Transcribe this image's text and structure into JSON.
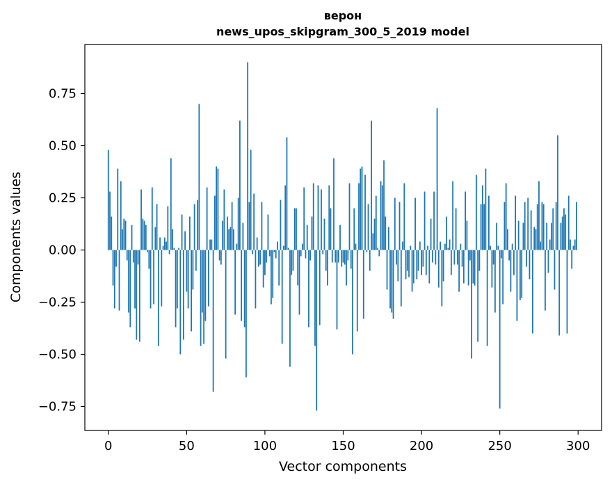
{
  "chart_data": {
    "type": "bar",
    "title_line1": "верон",
    "title_line2": "news_upos_skipgram_300_5_2019 model",
    "xlabel": "Vector components",
    "ylabel": "Components values",
    "xlim": [
      -15,
      315
    ],
    "ylim": [
      -0.865,
      0.985
    ],
    "xticks": [
      0,
      50,
      100,
      150,
      200,
      250,
      300
    ],
    "xtick_labels": [
      "0",
      "50",
      "100",
      "150",
      "200",
      "250",
      "300"
    ],
    "yticks": [
      -0.75,
      -0.5,
      -0.25,
      0.0,
      0.25,
      0.5,
      0.75
    ],
    "ytick_labels": [
      "−0.75",
      "−0.50",
      "−0.25",
      "0.00",
      "0.25",
      "0.50",
      "0.75"
    ],
    "color": "#1f77b4",
    "values": [
      0.48,
      0.28,
      0.16,
      -0.17,
      -0.28,
      -0.08,
      0.39,
      -0.29,
      0.33,
      0.1,
      0.15,
      0.14,
      -0.05,
      -0.3,
      -0.37,
      0.12,
      -0.06,
      -0.28,
      -0.43,
      -0.07,
      -0.44,
      0.29,
      0.15,
      0.14,
      0.12,
      -0.01,
      -0.09,
      -0.28,
      0.3,
      -0.26,
      0.11,
      0.22,
      -0.46,
      0.06,
      -0.27,
      0.02,
      0.06,
      0.04,
      0.21,
      -0.02,
      0.44,
      0.1,
      0.01,
      -0.37,
      -0.28,
      0.01,
      -0.5,
      0.17,
      -0.43,
      0.09,
      -0.2,
      -0.28,
      0.16,
      -0.39,
      -0.19,
      0.22,
      -0.1,
      0.24,
      0.7,
      -0.46,
      -0.3,
      -0.45,
      -0.34,
      0.3,
      -0.27,
      0.05,
      0.05,
      -0.68,
      0.26,
      0.4,
      0.39,
      -0.05,
      -0.07,
      0.14,
      0.29,
      -0.52,
      0.16,
      0.1,
      0.11,
      0.23,
      0.1,
      -0.31,
      0.03,
      0.25,
      0.62,
      -0.34,
      0.13,
      -0.37,
      -0.61,
      0.9,
      0.23,
      0.48,
      -0.02,
      0.27,
      -0.28,
      0.06,
      -0.08,
      -0.07,
      0.23,
      -0.18,
      -0.12,
      -0.06,
      0.17,
      -0.03,
      -0.26,
      -0.23,
      -0.01,
      -0.04,
      0.04,
      -0.17,
      0.24,
      -0.45,
      0.02,
      0.31,
      0.54,
      0.01,
      -0.56,
      -0.12,
      -0.1,
      0.2,
      0.2,
      -0.17,
      -0.31,
      -0.03,
      0.03,
      0.3,
      -0.04,
      0.12,
      -0.37,
      -0.05,
      0.16,
      0.32,
      -0.46,
      -0.77,
      0.31,
      -0.36,
      0.29,
      -0.02,
      0.15,
      -0.1,
      -0.17,
      0.31,
      0.2,
      -0.06,
      0.44,
      -0.06,
      -0.38,
      -0.06,
      0.12,
      -0.08,
      -0.06,
      -0.07,
      -0.17,
      -0.05,
      0.32,
      -0.09,
      -0.5,
      0.2,
      0.03,
      -0.39,
      0.32,
      0.39,
      0.4,
      -0.33,
      0.36,
      -0.01,
      0.22,
      -0.1,
      0.62,
      0.08,
      0.15,
      0.26,
      0.01,
      -0.03,
      0.33,
      0.31,
      0.43,
      0.16,
      -0.19,
      0.11,
      -0.28,
      -0.3,
      -0.33,
      0.25,
      -0.07,
      -0.15,
      0.23,
      -0.27,
      0.04,
      0.32,
      -0.14,
      -0.1,
      -0.13,
      0.02,
      -0.2,
      -0.16,
      0.25,
      -0.14,
      -0.1,
      0.04,
      -0.12,
      -0.08,
      0.28,
      -0.12,
      0.02,
      -0.16,
      0.15,
      -0.06,
      0.28,
      -0.07,
      0.68,
      -0.18,
      0.04,
      -0.27,
      -0.15,
      0.03,
      0.16,
      0.01,
      0.05,
      -0.12,
      0.33,
      -0.07,
      0.2,
      -0.07,
      -0.2,
      0.03,
      -0.08,
      -0.16,
      0.28,
      0.14,
      -0.17,
      -0.05,
      -0.52,
      -0.16,
      -0.17,
      0.36,
      -0.44,
      -0.1,
      0.22,
      0.31,
      0.22,
      0.39,
      -0.46,
      0.26,
      0.02,
      -0.18,
      -0.07,
      -0.3,
      0.13,
      0.02,
      -0.76,
      -0.04,
      -0.26,
      0.23,
      0.32,
      0.1,
      -0.05,
      -0.2,
      0.03,
      -0.12,
      0.26,
      -0.34,
      0.14,
      -0.24,
      -0.23,
      0.13,
      0.23,
      -0.08,
      0.25,
      -0.14,
      0.19,
      -0.4,
      0.11,
      0.1,
      0.22,
      0.33,
      0.04,
      0.23,
      0.22,
      -0.29,
      0.13,
      -0.11,
      0.05,
      0.13,
      0.2,
      -0.19,
      0.23,
      0.55,
      -0.41,
      0.13,
      0.16,
      0.2,
      0.17,
      -0.4,
      0.26,
      0.05,
      -0.09,
      0.02,
      0.05,
      0.23
    ]
  }
}
